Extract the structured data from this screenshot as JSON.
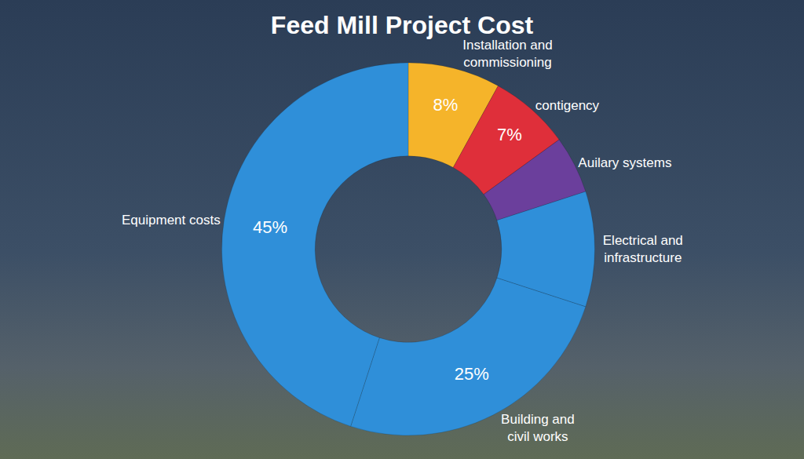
{
  "chart_data": {
    "type": "donut",
    "title": "Feed Mill Project Cost",
    "categories": [
      "Installation and commissioning",
      "contigency",
      "Auilary systems",
      "Electrical and infrastructure",
      "Building and civil works",
      "Equipment costs"
    ],
    "values": [
      8,
      7,
      5,
      10,
      25,
      45
    ],
    "value_labels": [
      "8%",
      "7%",
      null,
      null,
      "25%",
      "45%"
    ],
    "colors": [
      "#f5b42a",
      "#df2f3a",
      "#6b3f9c",
      "#2f8fd9",
      "#2f8fd9",
      "#2f8fd9"
    ],
    "data_labels": true
  }
}
